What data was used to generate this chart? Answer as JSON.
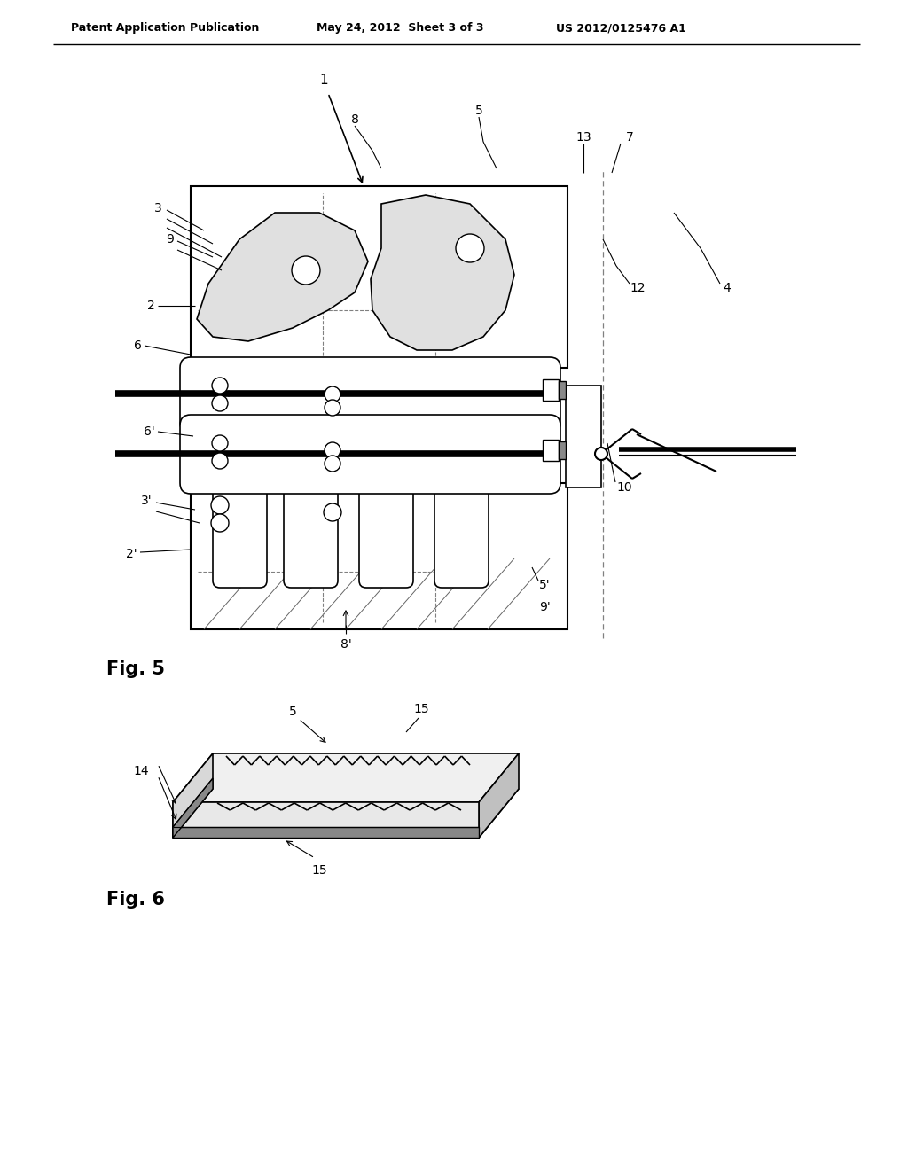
{
  "bg_color": "#ffffff",
  "header_left": "Patent Application Publication",
  "header_center": "May 24, 2012  Sheet 3 of 3",
  "header_right": "US 2012/0125476 A1",
  "fig5_label": "Fig. 5",
  "fig6_label": "Fig. 6"
}
